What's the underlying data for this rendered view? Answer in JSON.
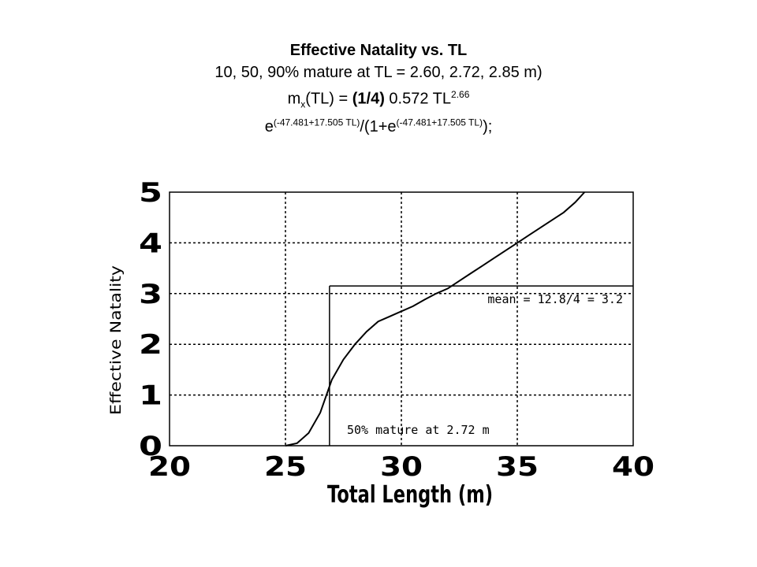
{
  "title": {
    "line1": "Effective Natality vs. TL",
    "line2": "10, 50, 90% mature at TL = 2.60, 2.72, 2.85 m)",
    "line3_m": "m",
    "line3_sub": "x",
    "line3_mid": "(TL) = ",
    "line3_bold": "(1/4)",
    "line3_rest": " 0.572 TL",
    "line3_sup": "2.66",
    "line4_e1": "e",
    "line4_sup1": "(-47.481+17.505 TL)",
    "line4_mid": "/(1+e",
    "line4_sup2": "(-47.481+17.505 TL)",
    "line4_end": ");"
  },
  "chart_data": {
    "type": "line",
    "xlabel": "Total Length (m)",
    "ylabel": "Effective Natality",
    "xlim": [
      20,
      40
    ],
    "ylim": [
      0,
      5
    ],
    "xticks": [
      "20",
      "25",
      "30",
      "35",
      "40"
    ],
    "yticks": [
      "0",
      "1",
      "2",
      "3",
      "4",
      "5"
    ],
    "grid": true,
    "series": [
      {
        "x": [
          25,
          25.5,
          26,
          26.5,
          27,
          27.5,
          28,
          28.5,
          29,
          29.5,
          30,
          30.5,
          31,
          31.5,
          32,
          32.5,
          33,
          33.5,
          34,
          34.5,
          35,
          35.5,
          36,
          36.5,
          37,
          37.5,
          37.9
        ],
        "y": [
          0.0,
          0.05,
          0.25,
          0.65,
          1.3,
          1.7,
          2.0,
          2.25,
          2.45,
          2.55,
          2.65,
          2.75,
          2.88,
          3.0,
          3.1,
          3.25,
          3.4,
          3.55,
          3.7,
          3.85,
          4.0,
          4.15,
          4.3,
          4.45,
          4.6,
          4.8,
          5.0
        ]
      }
    ],
    "reference_lines": {
      "vertical_x": 26.9,
      "horizontal_y": 3.15
    },
    "annotations": {
      "mean": "mean = 12.8/4 = 3.2",
      "mature": "50% mature at 2.72 m"
    }
  }
}
